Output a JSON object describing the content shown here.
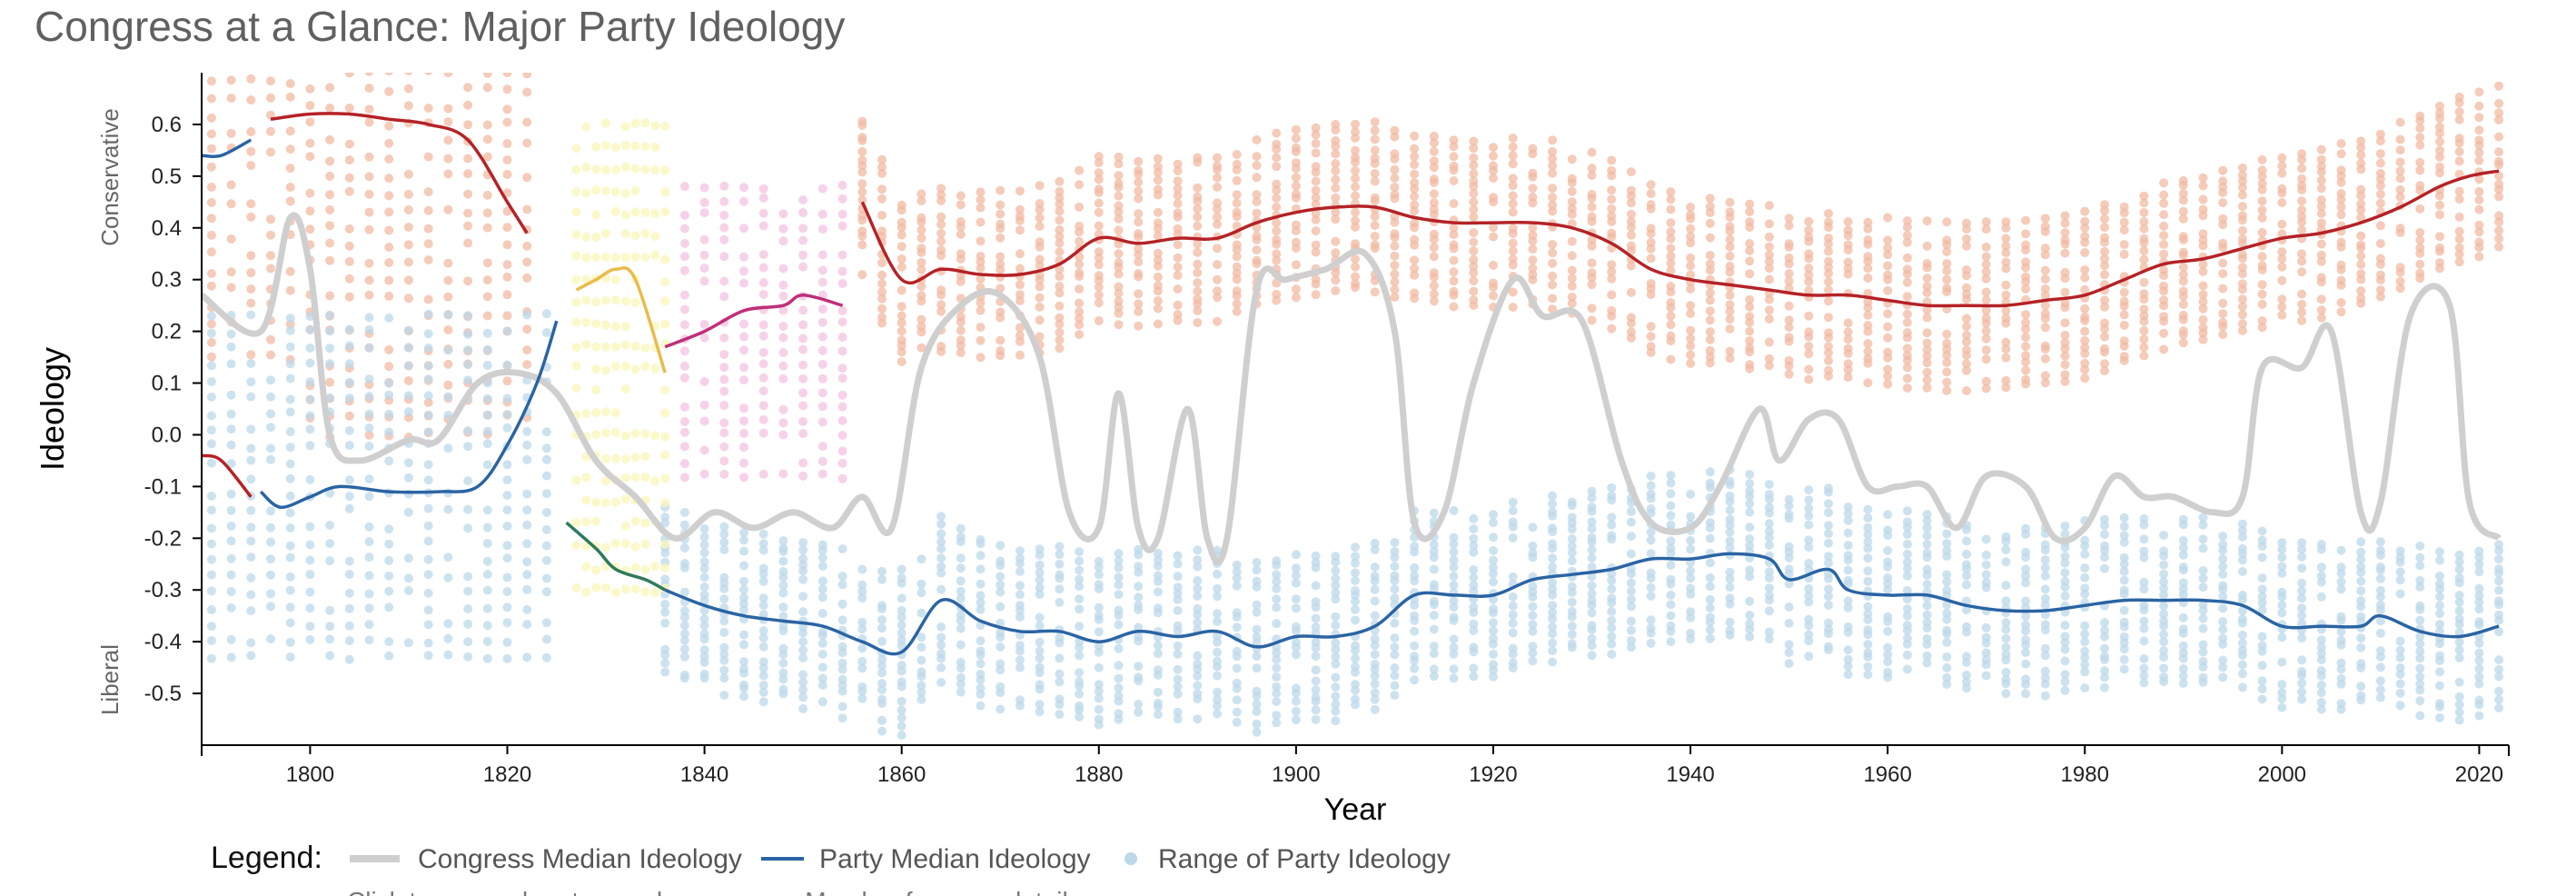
{
  "chart_data": {
    "type": "line",
    "title": "Congress at a Glance: Major Party Ideology",
    "xlabel": "Year",
    "ylabel": "Ideology",
    "xlim": [
      1789,
      2023
    ],
    "ylim": [
      -0.6,
      0.7
    ],
    "x_ticks": [
      1800,
      1820,
      1840,
      1860,
      1880,
      1900,
      1920,
      1940,
      1960,
      1980,
      2000,
      2020
    ],
    "y_ticks": [
      -0.5,
      -0.4,
      -0.3,
      -0.2,
      -0.1,
      0.0,
      0.1,
      0.2,
      0.3,
      0.4,
      0.5,
      0.6
    ],
    "y_tick_labels": [
      "-0.5",
      "-0.4",
      "-0.3",
      "-0.2",
      "-0.1",
      "0.0",
      "0.1",
      "0.2",
      "0.3",
      "0.4",
      "0.5",
      "0.6"
    ],
    "y_side_labels": {
      "top": "Conservative",
      "bottom": "Liberal"
    },
    "colors": {
      "congress_median": "#cfcfcf",
      "republican": "#b52226",
      "democrat": "#2a64a4",
      "federalist_dots": "#f2b9a3",
      "democrat_dots": "#bcd8ea",
      "jacksonian": "#eabb4c",
      "jackson_dots": "#faf5b8",
      "whig": "#c02f7a",
      "whig_dots": "#f3c3e0",
      "adams": "#2f7b59"
    },
    "congress_median": {
      "name": "Congress Median Ideology",
      "points": [
        [
          1789,
          0.27
        ],
        [
          1795,
          0.2
        ],
        [
          1798,
          0.42
        ],
        [
          1800,
          0.32
        ],
        [
          1802,
          0.0
        ],
        [
          1805,
          -0.05
        ],
        [
          1810,
          -0.01
        ],
        [
          1813,
          -0.01
        ],
        [
          1817,
          0.1
        ],
        [
          1821,
          0.12
        ],
        [
          1825,
          0.08
        ],
        [
          1829,
          -0.05
        ],
        [
          1833,
          -0.12
        ],
        [
          1837,
          -0.2
        ],
        [
          1841,
          -0.15
        ],
        [
          1845,
          -0.18
        ],
        [
          1849,
          -0.15
        ],
        [
          1853,
          -0.18
        ],
        [
          1856,
          -0.12
        ],
        [
          1859,
          -0.18
        ],
        [
          1862,
          0.13
        ],
        [
          1866,
          0.25
        ],
        [
          1870,
          0.27
        ],
        [
          1874,
          0.15
        ],
        [
          1877,
          -0.15
        ],
        [
          1880,
          -0.18
        ],
        [
          1882,
          0.08
        ],
        [
          1884,
          -0.18
        ],
        [
          1886,
          -0.2
        ],
        [
          1889,
          0.05
        ],
        [
          1891,
          -0.2
        ],
        [
          1893,
          -0.2
        ],
        [
          1896,
          0.28
        ],
        [
          1899,
          0.3
        ],
        [
          1903,
          0.32
        ],
        [
          1907,
          0.35
        ],
        [
          1910,
          0.2
        ],
        [
          1912,
          -0.17
        ],
        [
          1915,
          -0.15
        ],
        [
          1918,
          0.1
        ],
        [
          1922,
          0.3
        ],
        [
          1925,
          0.23
        ],
        [
          1929,
          0.22
        ],
        [
          1933,
          -0.05
        ],
        [
          1936,
          -0.17
        ],
        [
          1940,
          -0.18
        ],
        [
          1943,
          -0.1
        ],
        [
          1947,
          0.05
        ],
        [
          1949,
          -0.05
        ],
        [
          1952,
          0.03
        ],
        [
          1955,
          0.03
        ],
        [
          1958,
          -0.1
        ],
        [
          1961,
          -0.1
        ],
        [
          1964,
          -0.1
        ],
        [
          1967,
          -0.18
        ],
        [
          1970,
          -0.08
        ],
        [
          1974,
          -0.1
        ],
        [
          1977,
          -0.2
        ],
        [
          1980,
          -0.18
        ],
        [
          1983,
          -0.08
        ],
        [
          1986,
          -0.12
        ],
        [
          1989,
          -0.12
        ],
        [
          1993,
          -0.15
        ],
        [
          1996,
          -0.12
        ],
        [
          1998,
          0.13
        ],
        [
          2002,
          0.13
        ],
        [
          2005,
          0.2
        ],
        [
          2008,
          -0.15
        ],
        [
          2010,
          -0.13
        ],
        [
          2013,
          0.23
        ],
        [
          2017,
          0.25
        ],
        [
          2019,
          -0.13
        ],
        [
          2022,
          -0.2
        ]
      ]
    },
    "party_medians": [
      {
        "party": "republican",
        "points": [
          [
            1856,
            0.45
          ],
          [
            1860,
            0.3
          ],
          [
            1864,
            0.32
          ],
          [
            1868,
            0.31
          ],
          [
            1872,
            0.31
          ],
          [
            1876,
            0.33
          ],
          [
            1880,
            0.38
          ],
          [
            1884,
            0.37
          ],
          [
            1888,
            0.38
          ],
          [
            1892,
            0.38
          ],
          [
            1896,
            0.41
          ],
          [
            1900,
            0.43
          ],
          [
            1904,
            0.44
          ],
          [
            1908,
            0.44
          ],
          [
            1912,
            0.42
          ],
          [
            1916,
            0.41
          ],
          [
            1920,
            0.41
          ],
          [
            1924,
            0.41
          ],
          [
            1928,
            0.4
          ],
          [
            1932,
            0.37
          ],
          [
            1936,
            0.32
          ],
          [
            1940,
            0.3
          ],
          [
            1944,
            0.29
          ],
          [
            1948,
            0.28
          ],
          [
            1952,
            0.27
          ],
          [
            1956,
            0.27
          ],
          [
            1960,
            0.26
          ],
          [
            1964,
            0.25
          ],
          [
            1968,
            0.25
          ],
          [
            1972,
            0.25
          ],
          [
            1976,
            0.26
          ],
          [
            1980,
            0.27
          ],
          [
            1984,
            0.3
          ],
          [
            1988,
            0.33
          ],
          [
            1992,
            0.34
          ],
          [
            1996,
            0.36
          ],
          [
            2000,
            0.38
          ],
          [
            2004,
            0.39
          ],
          [
            2008,
            0.41
          ],
          [
            2012,
            0.44
          ],
          [
            2016,
            0.48
          ],
          [
            2019,
            0.5
          ],
          [
            2022,
            0.51
          ]
        ]
      },
      {
        "party": "democrat",
        "points": [
          [
            1836,
            -0.3
          ],
          [
            1840,
            -0.33
          ],
          [
            1844,
            -0.35
          ],
          [
            1848,
            -0.36
          ],
          [
            1852,
            -0.37
          ],
          [
            1856,
            -0.4
          ],
          [
            1860,
            -0.42
          ],
          [
            1864,
            -0.32
          ],
          [
            1868,
            -0.36
          ],
          [
            1872,
            -0.38
          ],
          [
            1876,
            -0.38
          ],
          [
            1880,
            -0.4
          ],
          [
            1884,
            -0.38
          ],
          [
            1888,
            -0.39
          ],
          [
            1892,
            -0.38
          ],
          [
            1896,
            -0.41
          ],
          [
            1900,
            -0.39
          ],
          [
            1904,
            -0.39
          ],
          [
            1908,
            -0.37
          ],
          [
            1912,
            -0.31
          ],
          [
            1916,
            -0.31
          ],
          [
            1920,
            -0.31
          ],
          [
            1924,
            -0.28
          ],
          [
            1928,
            -0.27
          ],
          [
            1932,
            -0.26
          ],
          [
            1936,
            -0.24
          ],
          [
            1940,
            -0.24
          ],
          [
            1944,
            -0.23
          ],
          [
            1948,
            -0.24
          ],
          [
            1950,
            -0.28
          ],
          [
            1954,
            -0.26
          ],
          [
            1956,
            -0.3
          ],
          [
            1960,
            -0.31
          ],
          [
            1964,
            -0.31
          ],
          [
            1968,
            -0.33
          ],
          [
            1972,
            -0.34
          ],
          [
            1976,
            -0.34
          ],
          [
            1980,
            -0.33
          ],
          [
            1984,
            -0.32
          ],
          [
            1988,
            -0.32
          ],
          [
            1992,
            -0.32
          ],
          [
            1996,
            -0.33
          ],
          [
            2000,
            -0.37
          ],
          [
            2004,
            -0.37
          ],
          [
            2008,
            -0.37
          ],
          [
            2010,
            -0.35
          ],
          [
            2014,
            -0.38
          ],
          [
            2018,
            -0.39
          ],
          [
            2022,
            -0.37
          ]
        ]
      },
      {
        "party": "democrat",
        "points": [
          [
            1789,
            0.54
          ],
          [
            1791,
            0.54
          ],
          [
            1794,
            0.57
          ]
        ]
      },
      {
        "party": "democrat",
        "points": [
          [
            1795,
            -0.11
          ],
          [
            1797,
            -0.14
          ],
          [
            1800,
            -0.12
          ],
          [
            1803,
            -0.1
          ],
          [
            1808,
            -0.11
          ],
          [
            1813,
            -0.11
          ],
          [
            1817,
            -0.1
          ],
          [
            1820,
            -0.02
          ],
          [
            1823,
            0.1
          ],
          [
            1825,
            0.22
          ]
        ]
      },
      {
        "party": "republican",
        "points": [
          [
            1796,
            0.61
          ],
          [
            1800,
            0.62
          ],
          [
            1804,
            0.62
          ],
          [
            1808,
            0.61
          ],
          [
            1812,
            0.6
          ],
          [
            1816,
            0.57
          ],
          [
            1820,
            0.45
          ],
          [
            1822,
            0.39
          ]
        ]
      },
      {
        "party": "republican",
        "points": [
          [
            1789,
            -0.04
          ],
          [
            1791,
            -0.05
          ],
          [
            1794,
            -0.12
          ]
        ]
      },
      {
        "party": "jacksonian",
        "points": [
          [
            1827,
            0.28
          ],
          [
            1829,
            0.3
          ],
          [
            1831,
            0.32
          ],
          [
            1833,
            0.3
          ],
          [
            1836,
            0.12
          ]
        ]
      },
      {
        "party": "whig",
        "points": [
          [
            1836,
            0.17
          ],
          [
            1840,
            0.2
          ],
          [
            1844,
            0.24
          ],
          [
            1848,
            0.25
          ],
          [
            1850,
            0.27
          ],
          [
            1854,
            0.25
          ]
        ]
      },
      {
        "party": "adams",
        "points": [
          [
            1826,
            -0.17
          ],
          [
            1829,
            -0.22
          ],
          [
            1831,
            -0.26
          ],
          [
            1834,
            -0.28
          ],
          [
            1836,
            -0.3
          ]
        ]
      }
    ],
    "legend": {
      "title": "Legend:",
      "items": [
        "Congress Median Ideology",
        "Party Median Ideology",
        "Range of Party Ideology"
      ],
      "note": "Click to zoom, drag to pan, hover over a Member for more details"
    }
  }
}
